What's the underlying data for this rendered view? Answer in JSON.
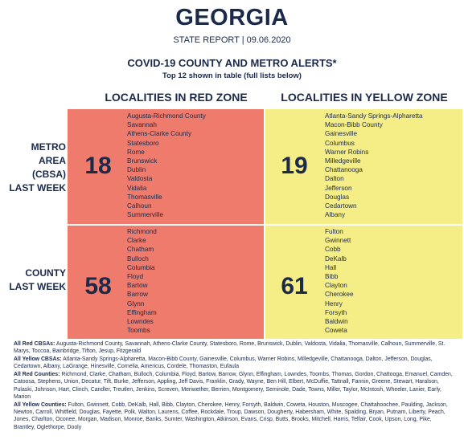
{
  "header": {
    "title": "GEORGIA",
    "subtitle": "STATE REPORT | 09.06.2020",
    "heading": "COVID-19 COUNTY AND METRO ALERTS*",
    "subheading": "Top 12 shown in table (full lists below)"
  },
  "columns": {
    "red": "LOCALITIES IN RED ZONE",
    "yellow": "LOCALITIES IN YELLOW ZONE"
  },
  "colors": {
    "red_zone": "#ee7b6b",
    "yellow_zone": "#f5ed86",
    "text": "#1b2a4a"
  },
  "rows": [
    {
      "label": [
        "METRO",
        "AREA",
        "(CBSA)",
        "LAST WEEK"
      ],
      "red": {
        "count": "18",
        "items": [
          "Augusta-Richmond County",
          "Savannah",
          "Athens-Clarke County",
          "Statesboro",
          "Rome",
          "Brunswick",
          "Dublin",
          "Valdosta",
          "Vidalia",
          "Thomasville",
          "Calhoun",
          "Summerville"
        ]
      },
      "yellow": {
        "count": "19",
        "items": [
          "Atlanta-Sandy Springs-Alpharetta",
          "Macon-Bibb County",
          "Gainesville",
          "Columbus",
          "Warner Robins",
          "Milledgeville",
          "Chattanooga",
          "Dalton",
          "Jefferson",
          "Douglas",
          "Cedartown",
          "Albany"
        ]
      }
    },
    {
      "label": [
        "COUNTY",
        "LAST WEEK"
      ],
      "red": {
        "count": "58",
        "items": [
          "Richmond",
          "Clarke",
          "Chatham",
          "Bulloch",
          "Columbia",
          "Floyd",
          "Bartow",
          "Barrow",
          "Glynn",
          "Effingham",
          "Lowndes",
          "Toombs"
        ]
      },
      "yellow": {
        "count": "61",
        "items": [
          "Fulton",
          "Gwinnett",
          "Cobb",
          "DeKalb",
          "Hall",
          "Bibb",
          "Clayton",
          "Cherokee",
          "Henry",
          "Forsyth",
          "Baldwin",
          "Coweta"
        ]
      }
    }
  ],
  "footnotes": [
    {
      "label": "All Red CBSAs:",
      "text": "Augusta-Richmond County, Savannah, Athens-Clarke County, Statesboro, Rome, Brunswick, Dublin, Valdosta, Vidalia, Thomasville, Calhoun, Summerville, St. Marys, Toccoa, Bainbridge, Tifton, Jesup, Fitzgerald"
    },
    {
      "label": "All Yellow CBSAs:",
      "text": "Atlanta-Sandy Springs-Alpharetta, Macon-Bibb County, Gainesville, Columbus, Warner Robins, Milledgeville, Chattanooga, Dalton, Jefferson, Douglas, Cedartown, Albany, LaGrange, Hinesville, Cornelia, Americus, Cordele, Thomaston, Eufaula"
    },
    {
      "label": "All Red Counties:",
      "text": "Richmond, Clarke, Chatham, Bulloch, Columbia, Floyd, Bartow, Barrow, Glynn, Effingham, Lowndes, Toombs, Thomas, Gordon, Chattooga, Emanuel, Camden, Catoosa, Stephens, Union, Decatur, Tift, Burke, Jefferson, Appling, Jeff Davis, Franklin, Grady, Wayne, Ben Hill, Elbert, McDuffie, Tattnall, Fannin, Greene, Stewart, Haralson, Pulaski, Johnson, Hart, Clinch, Candler, Treutlen, Jenkins, Screven, Meriwether, Berrien, Montgomery, Seminole, Dade, Towns, Miller, Taylor, McIntosh, Wheeler, Lanier, Early, Marion"
    },
    {
      "label": "All Yellow Counties:",
      "text": "Fulton, Gwinnett, Cobb, DeKalb, Hall, Bibb, Clayton, Cherokee, Henry, Forsyth, Baldwin, Coweta, Houston, Muscogee, Chattahoochee, Paulding, Jackson, Newton, Carroll, Whitfield, Douglas, Fayette, Polk, Walton, Laurens, Coffee, Rockdale, Troup, Dawson, Dougherty, Habersham, White, Spalding, Bryan, Putnam, Liberty, Peach, Jones, Charlton, Oconee, Morgan, Madison, Monroe, Banks, Sumter, Washington, Atkinson, Evans, Crisp, Butts, Brooks, Mitchell, Harris, Telfair, Cook, Upson, Long, Pike, Brantley, Oglethorpe, Dooly"
    }
  ]
}
